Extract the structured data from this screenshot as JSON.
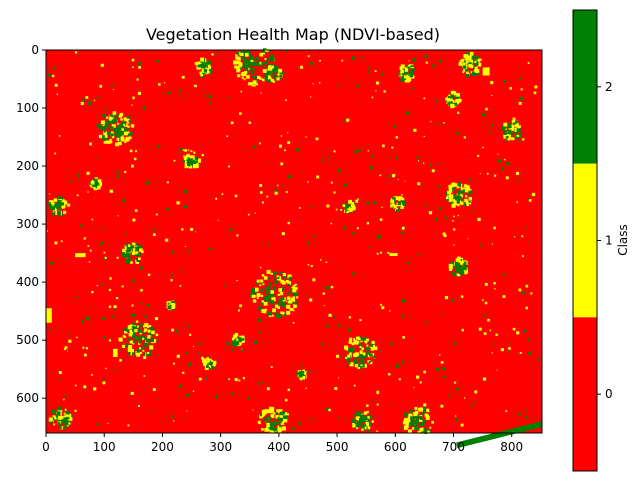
{
  "chart_data": {
    "type": "heatmap",
    "title": "Vegetation Health Map (NDVI-based)",
    "xlabel": "",
    "ylabel": "",
    "xlim": [
      0,
      852
    ],
    "ylim": [
      660,
      0
    ],
    "x_ticks": [
      0,
      100,
      200,
      300,
      400,
      500,
      600,
      700,
      800
    ],
    "y_ticks": [
      0,
      100,
      200,
      300,
      400,
      500,
      600
    ],
    "background_class": 0,
    "colorbar": {
      "label": "Class",
      "ticks": [
        0,
        1,
        2
      ],
      "classes": [
        {
          "value": 0,
          "color": "#ff0000"
        },
        {
          "value": 1,
          "color": "#ffff00"
        },
        {
          "value": 2,
          "color": "#008000"
        }
      ]
    },
    "patches": [
      {
        "cx": 358,
        "cy": 25,
        "r": 35
      },
      {
        "cx": 395,
        "cy": 420,
        "r": 40
      },
      {
        "cx": 120,
        "cy": 135,
        "r": 30
      },
      {
        "cx": 160,
        "cy": 500,
        "r": 32
      },
      {
        "cx": 540,
        "cy": 520,
        "r": 28
      },
      {
        "cx": 710,
        "cy": 250,
        "r": 22
      },
      {
        "cx": 710,
        "cy": 375,
        "r": 16
      },
      {
        "cx": 150,
        "cy": 350,
        "r": 18
      },
      {
        "cx": 250,
        "cy": 190,
        "r": 14
      },
      {
        "cx": 20,
        "cy": 270,
        "r": 16
      },
      {
        "cx": 25,
        "cy": 635,
        "r": 18
      },
      {
        "cx": 640,
        "cy": 640,
        "r": 25
      },
      {
        "cx": 390,
        "cy": 640,
        "r": 25
      },
      {
        "cx": 545,
        "cy": 640,
        "r": 18
      },
      {
        "cx": 800,
        "cy": 140,
        "r": 18
      },
      {
        "cx": 730,
        "cy": 25,
        "r": 20
      },
      {
        "cx": 390,
        "cy": 40,
        "r": 15
      },
      {
        "cx": 620,
        "cy": 40,
        "r": 14
      },
      {
        "cx": 270,
        "cy": 30,
        "r": 15
      },
      {
        "cx": 700,
        "cy": 85,
        "r": 12
      },
      {
        "cx": 605,
        "cy": 265,
        "r": 12
      },
      {
        "cx": 280,
        "cy": 540,
        "r": 10
      },
      {
        "cx": 520,
        "cy": 270,
        "r": 10
      },
      {
        "cx": 330,
        "cy": 500,
        "r": 10
      },
      {
        "cx": 440,
        "cy": 560,
        "r": 8
      },
      {
        "cx": 85,
        "cy": 230,
        "r": 9
      },
      {
        "cx": 215,
        "cy": 440,
        "r": 7
      }
    ],
    "small_features": [
      {
        "x": 50,
        "y": 350,
        "w": 18,
        "h": 7,
        "class": 1
      },
      {
        "x": 0,
        "y": 445,
        "w": 10,
        "h": 25,
        "class": 1
      },
      {
        "x": 750,
        "y": 30,
        "w": 12,
        "h": 14,
        "class": 1
      },
      {
        "x": 115,
        "y": 515,
        "w": 8,
        "h": 14,
        "class": 1
      },
      {
        "x": 590,
        "y": 350,
        "w": 14,
        "h": 5,
        "class": 1
      },
      {
        "x": 700,
        "y": 640,
        "w": 150,
        "h": 10,
        "class": 2
      }
    ]
  }
}
